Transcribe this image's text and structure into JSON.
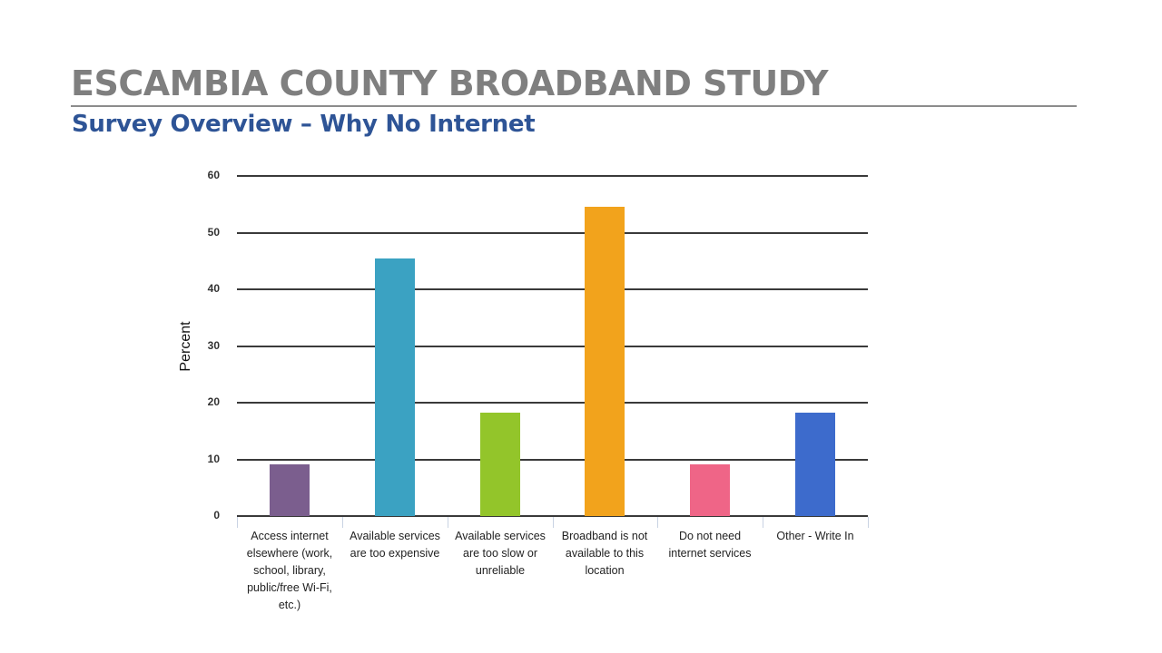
{
  "slide": {
    "title": "ESCAMBIA COUNTY BROADBAND STUDY",
    "subtitle": "Survey Overview – Why No Internet",
    "colors": {
      "title": "#7f7f7f",
      "subtitle": "#2e5496"
    }
  },
  "chart": {
    "ylabel": "Percent",
    "yticks": [
      "0",
      "10",
      "20",
      "30",
      "40",
      "50",
      "60"
    ],
    "categories": [
      "Access internet elsewhere (work, school, library, public/free Wi-Fi, etc.)",
      "Available services are too expensive",
      "Available services are too slow or unreliable",
      "Broadband is not available to this location",
      "Do not need internet services",
      "Other - Write In"
    ]
  },
  "chart_data": {
    "type": "bar",
    "title": "Survey Overview – Why No Internet",
    "xlabel": "",
    "ylabel": "Percent",
    "ylim": [
      0,
      60
    ],
    "yticks": [
      0,
      10,
      20,
      30,
      40,
      50,
      60
    ],
    "grid": true,
    "legend": null,
    "categories": [
      "Access internet elsewhere (work, school, library, public/free Wi-Fi, etc.)",
      "Available services are too expensive",
      "Available services are too slow or unreliable",
      "Broadband is not available to this location",
      "Do not need internet services",
      "Other - Write In"
    ],
    "values": [
      9.1,
      45.5,
      18.2,
      54.5,
      9.1,
      18.2
    ],
    "colors": [
      "#7b5e8e",
      "#3ba2c2",
      "#93c52a",
      "#f2a31c",
      "#ef6587",
      "#3d6bcc"
    ]
  }
}
